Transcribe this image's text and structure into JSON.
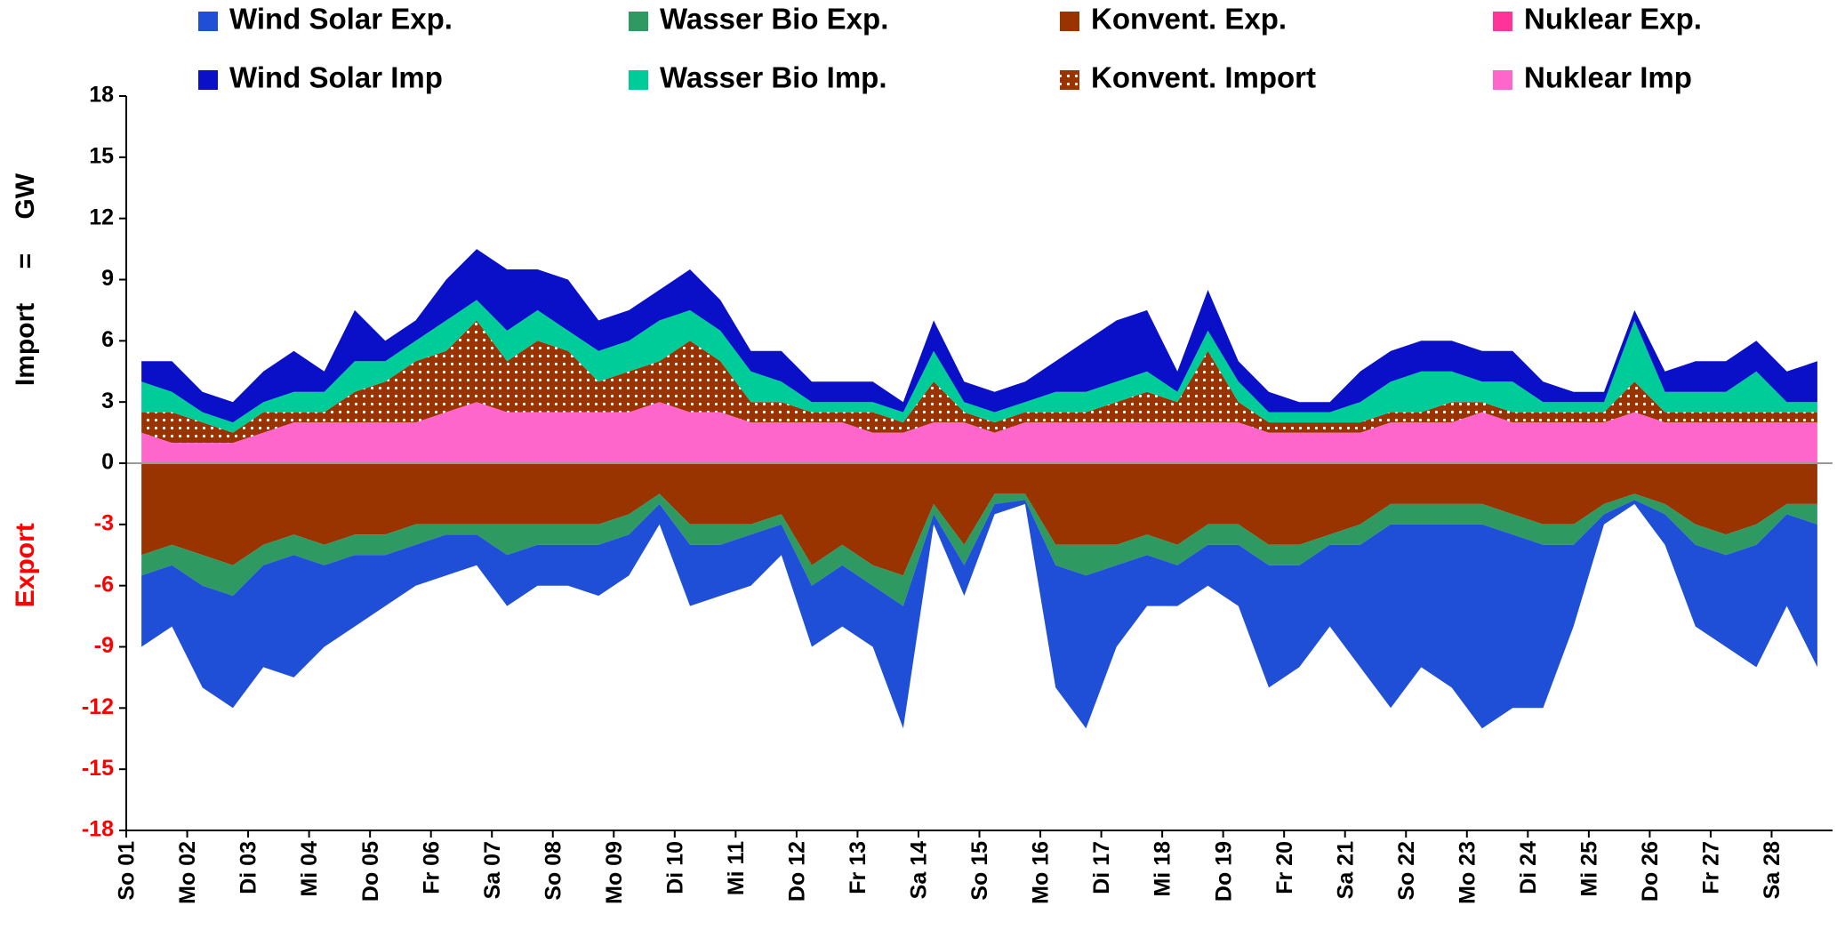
{
  "chart_data": {
    "type": "stacked-area",
    "y_label": "Import = GW",
    "y_label_negative": "Export",
    "negative_label_color": "#ff0000",
    "categories": [
      "So 01",
      null,
      "Mo 02",
      null,
      "Di 03",
      null,
      "Mi 04",
      null,
      "Do 05",
      null,
      "Fr 06",
      null,
      "Sa 07",
      null,
      "So 08",
      null,
      "Mo 09",
      null,
      "Di 10",
      null,
      "Mi 11",
      null,
      "Do 12",
      null,
      "Fr 13",
      null,
      "Sa 14",
      null,
      "So 15",
      null,
      "Mo 16",
      null,
      "Di 17",
      null,
      "Mi 18",
      null,
      "Do 19",
      null,
      "Fr 20",
      null,
      "Sa 21",
      null,
      "So 22",
      null,
      "Mo 23",
      null,
      "Di 24",
      null,
      "Mi 25",
      null,
      "Do 26",
      null,
      "Fr 27",
      null,
      "Sa 28",
      null
    ],
    "ylim": [
      -18,
      18
    ],
    "yticks": [
      -18,
      -15,
      -12,
      -9,
      -6,
      -3,
      0,
      3,
      6,
      9,
      12,
      15,
      18
    ],
    "series": [
      {
        "name": "Wind Solar Exp.",
        "color": "#1f4fd6",
        "values": [
          -3.5,
          -3,
          -5,
          -5.5,
          -5,
          -6,
          -4,
          -3.5,
          -2.5,
          -2,
          -2,
          -1.5,
          -2.5,
          -2,
          -2,
          -2.5,
          -2,
          -1,
          -3,
          -2.5,
          -2.5,
          -1.5,
          -3,
          -3,
          -3,
          -6,
          -0.5,
          -1.5,
          -0.5,
          -0.2,
          -6,
          -7.5,
          -4,
          -2.5,
          -2,
          -2,
          -3,
          -6,
          -5,
          -4,
          -6,
          -9,
          -7,
          -8,
          -10,
          -8.5,
          -8,
          -4,
          -0.5,
          -0.2,
          -1.5,
          -4,
          -4.5,
          -6,
          -4.5,
          -7
        ]
      },
      {
        "name": "Wasser Bio Exp.",
        "color": "#2e9a62",
        "values": [
          -1,
          -1,
          -1.5,
          -1.5,
          -1,
          -1,
          -1,
          -1,
          -1,
          -1,
          -0.5,
          -0.5,
          -1.5,
          -1,
          -1,
          -1,
          -1,
          -0.5,
          -1,
          -1,
          -0.5,
          -0.5,
          -1,
          -1,
          -1,
          -1.5,
          -0.5,
          -1,
          -0.5,
          -0.3,
          -1,
          -1.5,
          -1,
          -1,
          -1,
          -1,
          -1,
          -1,
          -1,
          -0.5,
          -1,
          -1,
          -1,
          -1,
          -1,
          -1,
          -1,
          -1,
          -0.5,
          -0.3,
          -0.5,
          -1,
          -1,
          -1,
          -0.5,
          -1
        ]
      },
      {
        "name": "Konvent. Exp.",
        "color": "#993300",
        "values": [
          -4.5,
          -4,
          -4.5,
          -5,
          -4,
          -3.5,
          -4,
          -3.5,
          -3.5,
          -3,
          -3,
          -3,
          -3,
          -3,
          -3,
          -3,
          -2.5,
          -1.5,
          -3,
          -3,
          -3,
          -2.5,
          -5,
          -4,
          -5,
          -5.5,
          -2,
          -4,
          -1.5,
          -1.5,
          -4,
          -4,
          -4,
          -3.5,
          -4,
          -3,
          -3,
          -4,
          -4,
          -3.5,
          -3,
          -2,
          -2,
          -2,
          -2,
          -2.5,
          -3,
          -3,
          -2,
          -1.5,
          -2,
          -3,
          -3.5,
          -3,
          -2,
          -2
        ]
      },
      {
        "name": "Nuklear Exp.",
        "color": "#ff3399",
        "values": [
          0,
          0,
          0,
          0,
          0,
          0,
          0,
          0,
          0,
          0,
          0,
          0,
          0,
          0,
          0,
          0,
          0,
          0,
          0,
          0,
          0,
          0,
          0,
          0,
          0,
          0,
          0,
          0,
          0,
          0,
          0,
          0,
          0,
          0,
          0,
          0,
          0,
          0,
          0,
          0,
          0,
          0,
          0,
          0,
          0,
          0,
          0,
          0,
          0,
          0,
          0,
          0,
          0,
          0,
          0,
          0
        ]
      },
      {
        "name": "Wind Solar Imp",
        "color": "#0a0fc8",
        "values": [
          1,
          1.5,
          1,
          1,
          1.5,
          2,
          1,
          2.5,
          1,
          1,
          2,
          2.5,
          3,
          2,
          2.5,
          1.5,
          1.5,
          1.5,
          2,
          1.5,
          1,
          1.5,
          1,
          1,
          1,
          0.5,
          1.5,
          1,
          1,
          1,
          1.5,
          2.5,
          3,
          3,
          1,
          2,
          1,
          1,
          0.5,
          0.5,
          1.5,
          1.5,
          1.5,
          1.5,
          1.5,
          1.5,
          1,
          0.5,
          0.5,
          0.5,
          1,
          1.5,
          1.5,
          1.5,
          1.5,
          2
        ]
      },
      {
        "name": "Wasser Bio Imp.",
        "color": "#00cc99",
        "values": [
          1.5,
          1,
          0.5,
          0.5,
          0.5,
          1,
          1,
          1.5,
          1,
          1,
          1.5,
          1,
          1.5,
          1.5,
          1,
          1.5,
          1.5,
          2,
          1.5,
          1.5,
          1.5,
          1,
          0.5,
          0.5,
          0.5,
          0.5,
          1.5,
          0.5,
          0.5,
          0.5,
          1,
          1,
          1,
          1,
          0.5,
          1,
          1,
          0.5,
          0.5,
          0.5,
          1,
          1.5,
          2,
          1.5,
          1,
          1.5,
          0.5,
          0.5,
          0.5,
          3,
          1,
          1,
          1,
          2,
          0.5,
          0.5
        ]
      },
      {
        "name": "Konvent. Import",
        "color": "#993300",
        "pattern": "dots",
        "values": [
          1,
          1.5,
          1,
          0.5,
          1,
          0.5,
          0.5,
          1.5,
          2,
          3,
          3,
          4,
          2.5,
          3.5,
          3,
          1.5,
          2,
          2,
          3.5,
          2.5,
          1,
          1,
          0.5,
          0.5,
          1,
          0.5,
          2,
          0.5,
          0.5,
          0.5,
          0.5,
          0.5,
          1,
          1.5,
          1,
          3.5,
          1,
          0.5,
          0.5,
          0.5,
          0.5,
          0.5,
          0.5,
          1,
          0.5,
          0.5,
          0.5,
          0.5,
          0.5,
          1.5,
          0.5,
          0.5,
          0.5,
          0.5,
          0.5,
          0.5
        ]
      },
      {
        "name": "Nuklear Imp",
        "color": "#ff66cc",
        "values": [
          1.5,
          1,
          1,
          1,
          1.5,
          2,
          2,
          2,
          2,
          2,
          2.5,
          3,
          2.5,
          2.5,
          2.5,
          2.5,
          2.5,
          3,
          2.5,
          2.5,
          2,
          2,
          2,
          2,
          1.5,
          1.5,
          2,
          2,
          1.5,
          2,
          2,
          2,
          2,
          2,
          2,
          2,
          2,
          1.5,
          1.5,
          1.5,
          1.5,
          2,
          2,
          2,
          2.5,
          2,
          2,
          2,
          2,
          2.5,
          2,
          2,
          2,
          2,
          2,
          2
        ]
      }
    ]
  }
}
